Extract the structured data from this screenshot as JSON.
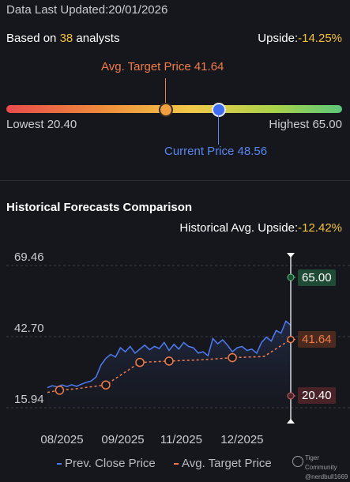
{
  "header": {
    "last_updated_label": "Data Last Updated:",
    "last_updated_value": "20/01/2026"
  },
  "summary": {
    "based_on_prefix": "Based on ",
    "analyst_count": "38",
    "based_on_suffix": " analysts",
    "upside_label": "Upside:",
    "upside_value": "-14.25%"
  },
  "price_range": {
    "avg_target_label": "Avg. Target Price 41.64",
    "lowest_label": "Lowest 20.40",
    "highest_label": "Highest 65.00",
    "current_label": "Current Price 48.56",
    "lowest": 20.4,
    "highest": 65.0,
    "avg_target": 41.64,
    "current": 48.56
  },
  "historical": {
    "title": "Historical Forecasts Comparison",
    "upside_label": "Historical Avg. Upside:",
    "upside_value": "-12.42%",
    "badges": {
      "high": "65.00",
      "avg": "41.64",
      "low": "20.40"
    }
  },
  "legend": {
    "prev_close": "Prev. Close Price",
    "avg_target": "Avg. Target Price"
  },
  "watermark": {
    "line1": "Tiger Community",
    "line2": "@nerdbull1669"
  },
  "colors": {
    "background": "#16171c",
    "price_line": "#4f7cf0",
    "target_line": "#ef7c4a",
    "upside_yellow": "#f3c13a",
    "high_badge": "#1f4a34",
    "low_badge": "#4a2328"
  },
  "chart_data": {
    "type": "line",
    "title": "Historical Forecasts Comparison",
    "ytick_labels": [
      "69.46",
      "42.70",
      "15.94"
    ],
    "yticks": [
      69.46,
      42.7,
      15.94
    ],
    "ylim": [
      15.94,
      69.46
    ],
    "xtick_labels": [
      "08/2025",
      "09/2025",
      "11/2025",
      "12/2025"
    ],
    "x_domain": [
      0,
      100
    ],
    "xticks": [
      6,
      31,
      55,
      80
    ],
    "series": [
      {
        "name": "Prev. Close Price",
        "x": [
          0,
          2,
          4,
          6,
          8,
          10,
          12,
          14,
          16,
          18,
          20,
          22,
          24,
          26,
          28,
          30,
          32,
          34,
          36,
          38,
          40,
          42,
          44,
          46,
          48,
          50,
          52,
          54,
          56,
          58,
          60,
          62,
          64,
          66,
          68,
          70,
          72,
          74,
          76,
          78,
          80,
          82,
          84,
          86,
          88,
          90,
          92,
          94,
          96,
          98,
          100
        ],
        "values": [
          23.5,
          24.2,
          23.8,
          24.5,
          23.9,
          24.6,
          24.0,
          24.8,
          25.5,
          26.0,
          27.5,
          32.0,
          34.5,
          36.0,
          35.0,
          38.5,
          37.0,
          39.0,
          36.5,
          38.0,
          39.5,
          37.8,
          39.0,
          38.2,
          40.5,
          37.5,
          39.8,
          38.0,
          40.5,
          39.0,
          38.5,
          36.5,
          37.0,
          35.5,
          42.0,
          40.0,
          41.5,
          39.5,
          37.0,
          38.5,
          39.0,
          37.5,
          38.0,
          36.5,
          40.5,
          42.5,
          41.0,
          45.0,
          44.0,
          48.5,
          47.0
        ]
      },
      {
        "name": "Avg. Target Price",
        "x": [
          0,
          5,
          11,
          24,
          38,
          50,
          64,
          76,
          89,
          100
        ],
        "values": [
          21.7,
          22.5,
          23.0,
          24.5,
          33.0,
          33.5,
          34.0,
          34.8,
          35.2,
          41.64
        ],
        "markers_at": [
          5,
          24,
          38,
          50,
          76
        ]
      }
    ],
    "current_price": 48.56,
    "high_target": 65.0,
    "low_target": 20.4,
    "legend_position": "bottom"
  }
}
